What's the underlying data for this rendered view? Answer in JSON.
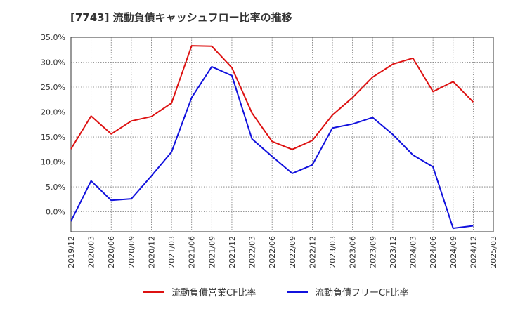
{
  "chart_data": {
    "type": "line",
    "title": "[7743]  流動負債キャッシュフロー比率の推移",
    "categories": [
      "2019/12",
      "2020/03",
      "2020/06",
      "2020/09",
      "2020/12",
      "2021/03",
      "2021/06",
      "2021/09",
      "2021/12",
      "2022/03",
      "2022/06",
      "2022/09",
      "2022/12",
      "2023/03",
      "2023/06",
      "2023/09",
      "2023/12",
      "2024/03",
      "2024/06",
      "2024/09",
      "2024/12",
      "2025/03"
    ],
    "y_ticks": [
      "35.0%",
      "30.0%",
      "25.0%",
      "20.0%",
      "15.0%",
      "10.0%",
      "5.0%",
      "0.0%"
    ],
    "ylim": [
      -4.0,
      35.0
    ],
    "grid": true,
    "legend_position": "bottom",
    "series": [
      {
        "name": "流動負債営業CF比率",
        "color": "#dd1111",
        "values": [
          12.6,
          19.2,
          15.6,
          18.2,
          19.1,
          21.8,
          33.3,
          33.2,
          28.9,
          19.8,
          14.1,
          12.5,
          14.3,
          19.4,
          22.9,
          27.0,
          29.6,
          30.8,
          24.1,
          26.1,
          22.0,
          null
        ]
      },
      {
        "name": "流動負債フリーCF比率",
        "color": "#1111dd",
        "values": [
          -1.9,
          6.2,
          2.3,
          2.6,
          7.2,
          12.0,
          22.9,
          29.1,
          27.3,
          14.6,
          11.1,
          7.7,
          9.4,
          16.8,
          17.6,
          18.9,
          15.5,
          11.4,
          9.0,
          -3.3,
          -2.8,
          null
        ]
      }
    ]
  }
}
